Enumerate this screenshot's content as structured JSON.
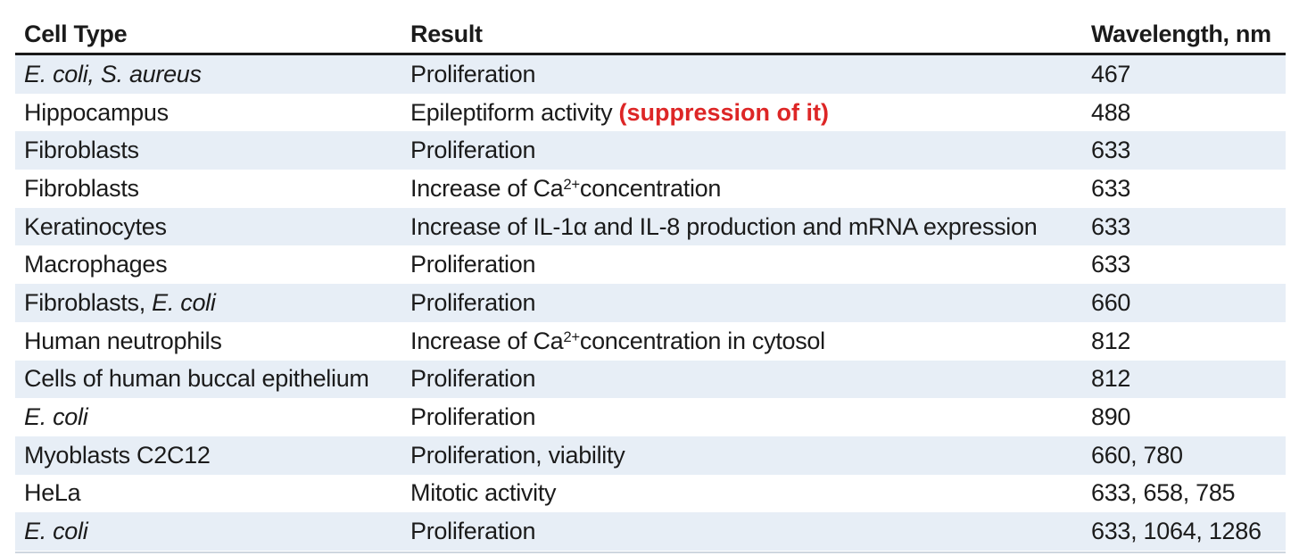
{
  "table": {
    "columns": [
      {
        "label": "Cell Type"
      },
      {
        "label": "Result"
      },
      {
        "label": "Wavelength, nm"
      }
    ],
    "rows": [
      {
        "cell_type": [
          {
            "t": "E. coli, S. aureus",
            "italic": true
          }
        ],
        "result": [
          {
            "t": "Proliferation"
          }
        ],
        "wavelength": "467"
      },
      {
        "cell_type": [
          {
            "t": "Hippocampus"
          }
        ],
        "result": [
          {
            "t": "Epileptiform activity "
          },
          {
            "t": "(suppression of it)",
            "red": true
          }
        ],
        "wavelength": "488"
      },
      {
        "cell_type": [
          {
            "t": "Fibroblasts"
          }
        ],
        "result": [
          {
            "t": "Proliferation"
          }
        ],
        "wavelength": "633"
      },
      {
        "cell_type": [
          {
            "t": "Fibroblasts"
          }
        ],
        "result": [
          {
            "t": "Increase of Ca"
          },
          {
            "t": "2+",
            "sup": true
          },
          {
            "t": "concentration"
          }
        ],
        "wavelength": "633"
      },
      {
        "cell_type": [
          {
            "t": "Keratinocytes"
          }
        ],
        "result": [
          {
            "t": "Increase of IL-1α and IL-8 production and mRNA expression"
          }
        ],
        "wavelength": "633"
      },
      {
        "cell_type": [
          {
            "t": "Macrophages"
          }
        ],
        "result": [
          {
            "t": "Proliferation"
          }
        ],
        "wavelength": "633"
      },
      {
        "cell_type": [
          {
            "t": "Fibroblasts, "
          },
          {
            "t": "E. coli",
            "italic": true
          }
        ],
        "result": [
          {
            "t": "Proliferation"
          }
        ],
        "wavelength": "660"
      },
      {
        "cell_type": [
          {
            "t": "Human neutrophils"
          }
        ],
        "result": [
          {
            "t": "Increase of Ca"
          },
          {
            "t": "2+",
            "sup": true
          },
          {
            "t": "concentration in cytosol"
          }
        ],
        "wavelength": "812"
      },
      {
        "cell_type": [
          {
            "t": "Cells of human buccal epithelium"
          }
        ],
        "result": [
          {
            "t": "Proliferation"
          }
        ],
        "wavelength": "812"
      },
      {
        "cell_type": [
          {
            "t": "E. coli",
            "italic": true
          }
        ],
        "result": [
          {
            "t": "Proliferation"
          }
        ],
        "wavelength": "890"
      },
      {
        "cell_type": [
          {
            "t": "Myoblasts C2C12"
          }
        ],
        "result": [
          {
            "t": "Proliferation, viability"
          }
        ],
        "wavelength": "660, 780"
      },
      {
        "cell_type": [
          {
            "t": "HeLa"
          }
        ],
        "result": [
          {
            "t": "Mitotic activity"
          }
        ],
        "wavelength": "633, 658, 785"
      },
      {
        "cell_type": [
          {
            "t": "E. coli",
            "italic": true
          }
        ],
        "result": [
          {
            "t": "Proliferation"
          }
        ],
        "wavelength": "633, 1064, 1286"
      }
    ]
  },
  "colors": {
    "row_alt_blue": "#e7eef6",
    "text": "#1b1b1b",
    "red_note": "#dd2626",
    "header_rule": "#191919",
    "bottom_rule": "#ced6df"
  },
  "chart_data": {
    "type": "table",
    "title": "",
    "columns": [
      "Cell Type",
      "Result",
      "Wavelength, nm"
    ],
    "rows": [
      [
        "E. coli, S. aureus",
        "Proliferation",
        "467"
      ],
      [
        "Hippocampus",
        "Epileptiform activity (suppression of it)",
        "488"
      ],
      [
        "Fibroblasts",
        "Proliferation",
        "633"
      ],
      [
        "Fibroblasts",
        "Increase of Ca2+concentration",
        "633"
      ],
      [
        "Keratinocytes",
        "Increase of IL-1α and IL-8 production and mRNA expression",
        "633"
      ],
      [
        "Macrophages",
        "Proliferation",
        "633"
      ],
      [
        "Fibroblasts, E. coli",
        "Proliferation",
        "660"
      ],
      [
        "Human neutrophils",
        "Increase of Ca2+concentration in cytosol",
        "812"
      ],
      [
        "Cells of human buccal epithelium",
        "Proliferation",
        "812"
      ],
      [
        "E. coli",
        "Proliferation",
        "890"
      ],
      [
        "Myoblasts C2C12",
        "Proliferation, viability",
        "660, 780"
      ],
      [
        "HeLa",
        "Mitotic activity",
        "633, 658, 785"
      ],
      [
        "E. coli",
        "Proliferation",
        "633, 1064, 1286"
      ]
    ]
  }
}
